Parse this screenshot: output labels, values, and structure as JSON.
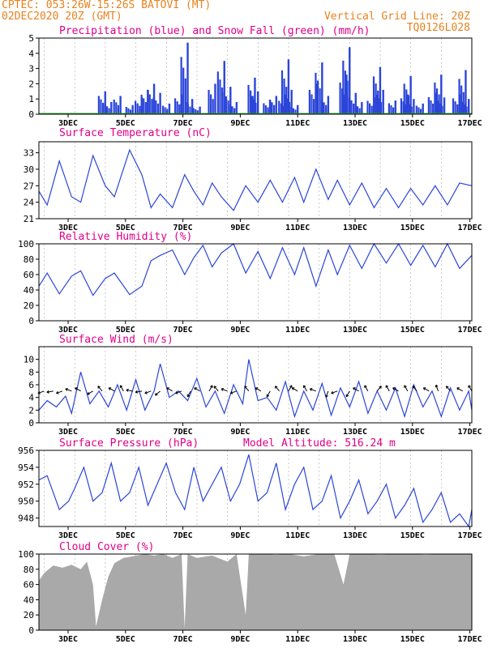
{
  "header": {
    "left_line1": "CPTEC:  053:26W-15:26S  BATOVI (MT)",
    "left_line2": "02DEC2020 20Z (GMT)",
    "right_line1": "Vertical Grid Line: 20Z",
    "right_line2": "TQ0126L028"
  },
  "x_ticks": [
    "3DEC",
    "5DEC",
    "7DEC",
    "9DEC",
    "11DEC",
    "13DEC",
    "15DEC",
    "17DEC"
  ],
  "colors": {
    "line": "#2b45d8",
    "title": "#e0008a",
    "header": "#e8821e",
    "snow": "#2ca02c",
    "cloud": "#a9a9a9",
    "arrow": "#000000"
  },
  "chart_data": [
    {
      "id": "precip",
      "type": "bar",
      "title": "Precipitation (blue) and Snow Fall (green) (mm/h)",
      "ylim": [
        0,
        5
      ],
      "yticks": [
        "0",
        "1",
        "2",
        "3",
        "4",
        "5"
      ],
      "x_range_days": [
        2.83,
        17
      ],
      "series": [
        {
          "name": "Precipitation",
          "color": "#2b45d8",
          "points": [
            [
              5.0,
              1.5
            ],
            [
              5.2,
              0.8
            ],
            [
              5.5,
              1.2
            ],
            [
              5.9,
              0.6
            ],
            [
              6.2,
              1.1
            ],
            [
              6.4,
              1.6
            ],
            [
              6.6,
              2.0
            ],
            [
              6.8,
              1.4
            ],
            [
              7.1,
              0.7
            ],
            [
              7.5,
              1.3
            ],
            [
              7.7,
              4.7
            ],
            [
              7.85,
              1.0
            ],
            [
              8.1,
              0.5
            ],
            [
              8.6,
              2.0
            ],
            [
              8.9,
              3.5
            ],
            [
              9.1,
              1.8
            ],
            [
              9.3,
              0.8
            ],
            [
              9.9,
              2.4
            ],
            [
              10.0,
              1.5
            ],
            [
              10.4,
              0.9
            ],
            [
              10.6,
              1.2
            ],
            [
              10.9,
              1.1
            ],
            [
              11.0,
              3.6
            ],
            [
              11.1,
              1.6
            ],
            [
              11.3,
              0.6
            ],
            [
              11.9,
              2.0
            ],
            [
              12.1,
              3.4
            ],
            [
              12.3,
              1.2
            ],
            [
              12.9,
              2.6
            ],
            [
              13.0,
              4.4
            ],
            [
              13.2,
              1.4
            ],
            [
              13.4,
              0.8
            ],
            [
              13.8,
              1.1
            ],
            [
              14.0,
              3.1
            ],
            [
              14.1,
              1.6
            ],
            [
              14.5,
              0.9
            ],
            [
              14.9,
              1.3
            ],
            [
              15.0,
              2.5
            ],
            [
              15.1,
              1.0
            ],
            [
              15.4,
              0.7
            ],
            [
              15.8,
              1.4
            ],
            [
              16.0,
              2.6
            ],
            [
              16.1,
              1.1
            ],
            [
              16.6,
              1.3
            ],
            [
              16.8,
              2.9
            ],
            [
              16.9,
              1.0
            ]
          ]
        },
        {
          "name": "Snow Fall",
          "color": "#2ca02c",
          "values": "0"
        }
      ]
    },
    {
      "id": "temp",
      "type": "line",
      "title": "Surface Temperature (nC)",
      "ylim": [
        21,
        35
      ],
      "yticks": [
        "21",
        "24",
        "27",
        "30",
        "33"
      ],
      "x_range_days": [
        2.83,
        17
      ],
      "points": [
        [
          2.83,
          26
        ],
        [
          3.1,
          23.5
        ],
        [
          3.5,
          31.5
        ],
        [
          3.9,
          25
        ],
        [
          4.2,
          24
        ],
        [
          4.6,
          32.5
        ],
        [
          5.0,
          27
        ],
        [
          5.3,
          25
        ],
        [
          5.8,
          33.5
        ],
        [
          6.2,
          29
        ],
        [
          6.5,
          23
        ],
        [
          6.8,
          25.5
        ],
        [
          7.2,
          23
        ],
        [
          7.6,
          29
        ],
        [
          7.9,
          26
        ],
        [
          8.2,
          23.5
        ],
        [
          8.5,
          27.5
        ],
        [
          8.8,
          25
        ],
        [
          9.2,
          22.5
        ],
        [
          9.6,
          27
        ],
        [
          10.0,
          24
        ],
        [
          10.4,
          28
        ],
        [
          10.8,
          24
        ],
        [
          11.2,
          28.5
        ],
        [
          11.5,
          24
        ],
        [
          11.9,
          30
        ],
        [
          12.3,
          24.5
        ],
        [
          12.6,
          28
        ],
        [
          13.0,
          23.5
        ],
        [
          13.4,
          27.5
        ],
        [
          13.8,
          23
        ],
        [
          14.2,
          26.5
        ],
        [
          14.6,
          23
        ],
        [
          15.0,
          26.5
        ],
        [
          15.4,
          23.5
        ],
        [
          15.8,
          27
        ],
        [
          16.2,
          23.5
        ],
        [
          16.6,
          27.5
        ],
        [
          17.0,
          27
        ]
      ]
    },
    {
      "id": "rh",
      "type": "line",
      "title": "Relative Humidity (%)",
      "ylim": [
        0,
        100
      ],
      "yticks": [
        "0",
        "20",
        "40",
        "60",
        "80",
        "100"
      ],
      "x_range_days": [
        2.83,
        17
      ],
      "points": [
        [
          2.83,
          45
        ],
        [
          3.1,
          62
        ],
        [
          3.5,
          35
        ],
        [
          3.9,
          58
        ],
        [
          4.2,
          65
        ],
        [
          4.6,
          33
        ],
        [
          5.0,
          55
        ],
        [
          5.3,
          62
        ],
        [
          5.8,
          34
        ],
        [
          6.2,
          45
        ],
        [
          6.5,
          78
        ],
        [
          6.8,
          85
        ],
        [
          7.2,
          92
        ],
        [
          7.6,
          60
        ],
        [
          7.9,
          82
        ],
        [
          8.2,
          98
        ],
        [
          8.5,
          70
        ],
        [
          8.8,
          88
        ],
        [
          9.2,
          100
        ],
        [
          9.6,
          62
        ],
        [
          10.0,
          90
        ],
        [
          10.4,
          55
        ],
        [
          10.8,
          95
        ],
        [
          11.2,
          60
        ],
        [
          11.5,
          95
        ],
        [
          11.9,
          45
        ],
        [
          12.3,
          92
        ],
        [
          12.6,
          60
        ],
        [
          13.0,
          98
        ],
        [
          13.4,
          68
        ],
        [
          13.8,
          100
        ],
        [
          14.2,
          75
        ],
        [
          14.6,
          100
        ],
        [
          15.0,
          72
        ],
        [
          15.4,
          98
        ],
        [
          15.8,
          70
        ],
        [
          16.2,
          100
        ],
        [
          16.6,
          68
        ],
        [
          17.0,
          85
        ]
      ]
    },
    {
      "id": "wind",
      "type": "line",
      "title": "Surface Wind (m/s)",
      "ylim": [
        0,
        12
      ],
      "yticks": [
        "0",
        "2",
        "4",
        "6",
        "8",
        "10"
      ],
      "x_range_days": [
        2.83,
        17
      ],
      "points": [
        [
          2.83,
          2
        ],
        [
          3.1,
          3.5
        ],
        [
          3.4,
          2.5
        ],
        [
          3.7,
          4.2
        ],
        [
          3.9,
          1.5
        ],
        [
          4.2,
          8
        ],
        [
          4.5,
          3
        ],
        [
          4.8,
          5
        ],
        [
          5.1,
          2.5
        ],
        [
          5.4,
          6
        ],
        [
          5.7,
          2
        ],
        [
          6.0,
          6.8
        ],
        [
          6.3,
          2
        ],
        [
          6.6,
          5
        ],
        [
          6.8,
          9.3
        ],
        [
          7.1,
          4
        ],
        [
          7.4,
          5
        ],
        [
          7.7,
          3.5
        ],
        [
          8.0,
          7
        ],
        [
          8.3,
          2.5
        ],
        [
          8.6,
          5
        ],
        [
          8.9,
          1.5
        ],
        [
          9.2,
          6
        ],
        [
          9.5,
          3
        ],
        [
          9.7,
          10
        ],
        [
          10.0,
          3.5
        ],
        [
          10.3,
          4
        ],
        [
          10.6,
          2
        ],
        [
          10.9,
          6.5
        ],
        [
          11.2,
          1
        ],
        [
          11.5,
          5
        ],
        [
          11.8,
          2
        ],
        [
          12.1,
          6.2
        ],
        [
          12.4,
          1.2
        ],
        [
          12.7,
          5.5
        ],
        [
          13.0,
          2.5
        ],
        [
          13.3,
          6.5
        ],
        [
          13.6,
          1.5
        ],
        [
          13.9,
          5
        ],
        [
          14.2,
          2
        ],
        [
          14.5,
          5.5
        ],
        [
          14.8,
          1
        ],
        [
          15.1,
          6
        ],
        [
          15.4,
          2.5
        ],
        [
          15.7,
          5
        ],
        [
          16.0,
          1
        ],
        [
          16.3,
          5.5
        ],
        [
          16.6,
          2
        ],
        [
          16.9,
          5
        ],
        [
          17.0,
          2
        ]
      ],
      "arrows_deg": [
        [
          3.0,
          250
        ],
        [
          3.3,
          260
        ],
        [
          3.6,
          250
        ],
        [
          3.9,
          290
        ],
        [
          4.2,
          300
        ],
        [
          4.6,
          240
        ],
        [
          4.9,
          320
        ],
        [
          5.3,
          300
        ],
        [
          5.6,
          330
        ],
        [
          5.9,
          280
        ],
        [
          6.2,
          260
        ],
        [
          6.5,
          250
        ],
        [
          6.8,
          230
        ],
        [
          7.2,
          300
        ],
        [
          7.5,
          250
        ],
        [
          7.8,
          210
        ],
        [
          8.1,
          300
        ],
        [
          8.4,
          30
        ],
        [
          8.7,
          320
        ],
        [
          9.0,
          290
        ],
        [
          9.3,
          250
        ],
        [
          9.7,
          320
        ],
        [
          10.1,
          300
        ],
        [
          10.4,
          210
        ],
        [
          10.7,
          320
        ],
        [
          11.0,
          30
        ],
        [
          11.3,
          300
        ],
        [
          11.6,
          330
        ],
        [
          11.9,
          290
        ],
        [
          12.3,
          200
        ],
        [
          12.6,
          250
        ],
        [
          13.0,
          210
        ],
        [
          13.3,
          300
        ],
        [
          13.6,
          330
        ],
        [
          13.9,
          40
        ],
        [
          14.3,
          330
        ],
        [
          14.6,
          300
        ],
        [
          14.9,
          330
        ],
        [
          15.2,
          320
        ],
        [
          15.6,
          300
        ],
        [
          15.9,
          340
        ],
        [
          16.3,
          320
        ],
        [
          16.7,
          300
        ],
        [
          17.0,
          330
        ]
      ]
    },
    {
      "id": "pres",
      "type": "line",
      "title": "Surface Pressure (hPa)",
      "subtitle": "Model Altitude: 516.24 m",
      "ylim": [
        947,
        956
      ],
      "yticks": [
        "948",
        "950",
        "952",
        "954",
        "956"
      ],
      "x_range_days": [
        2.83,
        17
      ],
      "points": [
        [
          2.83,
          952.5
        ],
        [
          3.1,
          953
        ],
        [
          3.5,
          949
        ],
        [
          3.8,
          950
        ],
        [
          4.0,
          951.5
        ],
        [
          4.3,
          954
        ],
        [
          4.6,
          950
        ],
        [
          4.9,
          951
        ],
        [
          5.2,
          954.5
        ],
        [
          5.5,
          950
        ],
        [
          5.8,
          951
        ],
        [
          6.1,
          954
        ],
        [
          6.4,
          949.5
        ],
        [
          6.7,
          952
        ],
        [
          7.0,
          954.5
        ],
        [
          7.3,
          951
        ],
        [
          7.6,
          949
        ],
        [
          7.9,
          954
        ],
        [
          8.2,
          950
        ],
        [
          8.5,
          952
        ],
        [
          8.8,
          954
        ],
        [
          9.1,
          950
        ],
        [
          9.4,
          952
        ],
        [
          9.7,
          955.5
        ],
        [
          10.0,
          950
        ],
        [
          10.3,
          951
        ],
        [
          10.6,
          954.5
        ],
        [
          10.9,
          949
        ],
        [
          11.2,
          952
        ],
        [
          11.5,
          954
        ],
        [
          11.8,
          949
        ],
        [
          12.1,
          950
        ],
        [
          12.4,
          953
        ],
        [
          12.7,
          948
        ],
        [
          13.0,
          950
        ],
        [
          13.3,
          952.5
        ],
        [
          13.6,
          948.5
        ],
        [
          13.9,
          950
        ],
        [
          14.2,
          952
        ],
        [
          14.5,
          948
        ],
        [
          14.8,
          949.5
        ],
        [
          15.1,
          951.5
        ],
        [
          15.4,
          947.5
        ],
        [
          15.7,
          949
        ],
        [
          16.0,
          951
        ],
        [
          16.3,
          947.5
        ],
        [
          16.6,
          948.5
        ],
        [
          16.9,
          947
        ],
        [
          17.0,
          949
        ]
      ]
    },
    {
      "id": "cloud",
      "type": "area",
      "title": "Cloud Cover (%)",
      "ylim": [
        0,
        100
      ],
      "yticks": [
        "0",
        "20",
        "40",
        "60",
        "80",
        "100"
      ],
      "x_range_days": [
        2.83,
        17
      ],
      "points": [
        [
          2.83,
          65
        ],
        [
          3.0,
          75
        ],
        [
          3.3,
          85
        ],
        [
          3.6,
          82
        ],
        [
          3.9,
          86
        ],
        [
          4.2,
          80
        ],
        [
          4.4,
          90
        ],
        [
          4.6,
          60
        ],
        [
          4.7,
          5
        ],
        [
          4.9,
          40
        ],
        [
          5.1,
          70
        ],
        [
          5.3,
          88
        ],
        [
          5.6,
          95
        ],
        [
          5.9,
          97
        ],
        [
          6.3,
          100
        ],
        [
          6.6,
          98
        ],
        [
          6.9,
          100
        ],
        [
          7.2,
          95
        ],
        [
          7.5,
          100
        ],
        [
          7.6,
          2
        ],
        [
          7.7,
          100
        ],
        [
          8.0,
          95
        ],
        [
          8.5,
          98
        ],
        [
          9.0,
          90
        ],
        [
          9.3,
          100
        ],
        [
          9.6,
          20
        ],
        [
          9.7,
          100
        ],
        [
          10.2,
          100
        ],
        [
          10.6,
          99
        ],
        [
          11.0,
          100
        ],
        [
          11.5,
          97
        ],
        [
          12.0,
          100
        ],
        [
          12.5,
          100
        ],
        [
          12.8,
          60
        ],
        [
          13.0,
          100
        ],
        [
          13.5,
          100
        ],
        [
          14.0,
          99
        ],
        [
          14.5,
          100
        ],
        [
          15.0,
          100
        ],
        [
          15.5,
          99
        ],
        [
          16.0,
          100
        ],
        [
          16.5,
          100
        ],
        [
          17.0,
          100
        ]
      ]
    }
  ]
}
